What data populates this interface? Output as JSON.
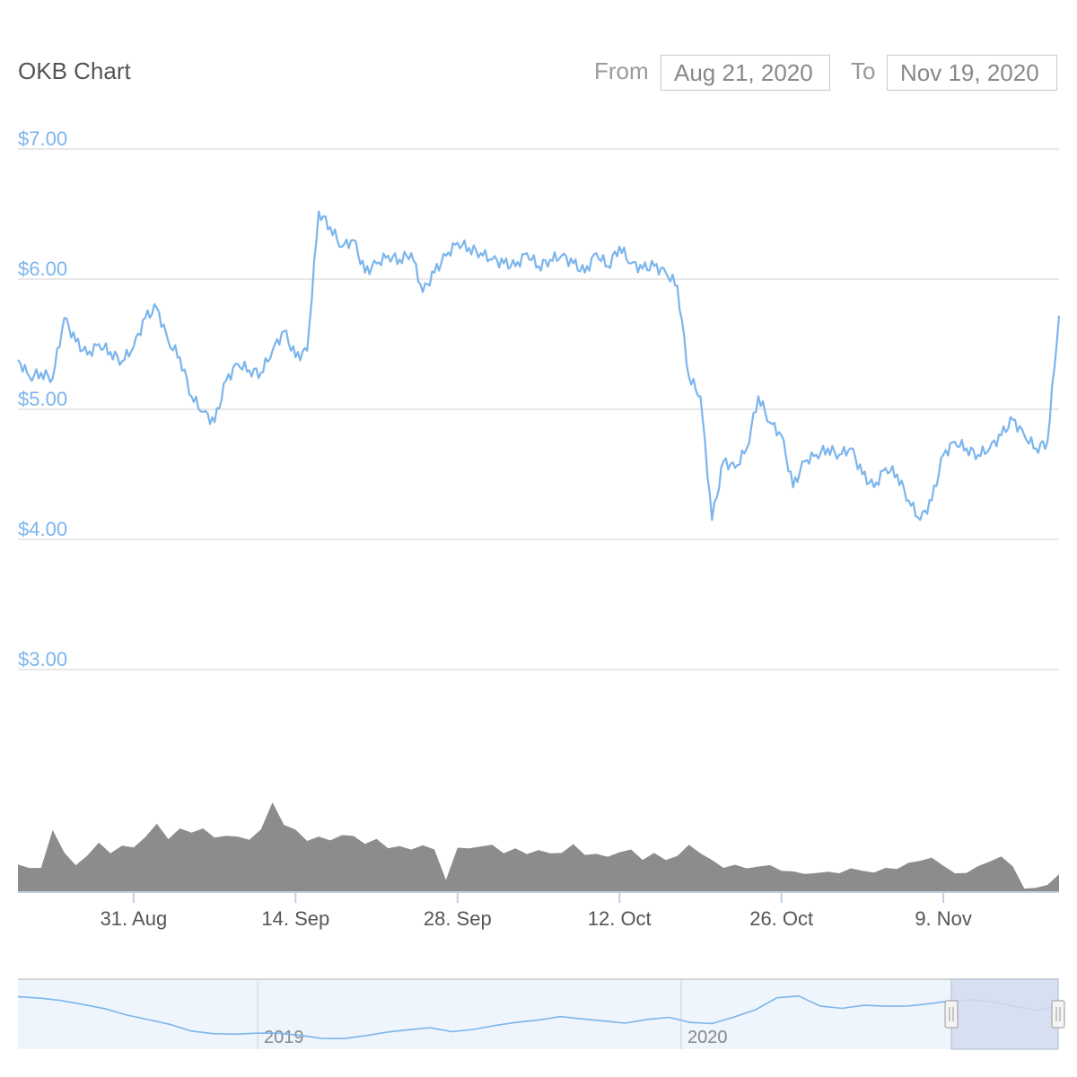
{
  "header": {
    "title": "OKB Chart",
    "from_label": "From",
    "from_value": "Aug 21, 2020",
    "to_label": "To",
    "to_value": "Nov 19, 2020"
  },
  "colors": {
    "price_line": "#7cb5ec",
    "volume_fill": "#8c8c8c",
    "grid": "#e0e0e0",
    "axis_text": "#555555",
    "ytick_text": "#7cb5ec",
    "navigator_fill": "#eef5fc",
    "navigator_mask": "#d2dcef"
  },
  "chart_data": {
    "type": "line",
    "title": "OKB Chart",
    "ylim": [
      3.0,
      7.0
    ],
    "y_ticks": [
      "$7.00",
      "$6.00",
      "$5.00",
      "$4.00",
      "$3.00"
    ],
    "y_tick_values": [
      7,
      6,
      5,
      4,
      3
    ],
    "x_range": [
      "2020-08-21",
      "2020-11-19"
    ],
    "x_ticks": [
      {
        "label": "31. Aug",
        "date": "2020-08-31"
      },
      {
        "label": "14. Sep",
        "date": "2020-09-14"
      },
      {
        "label": "28. Sep",
        "date": "2020-09-28"
      },
      {
        "label": "12. Oct",
        "date": "2020-10-12"
      },
      {
        "label": "26. Oct",
        "date": "2020-10-26"
      },
      {
        "label": "9. Nov",
        "date": "2020-11-09"
      }
    ],
    "grid": true,
    "series": [
      {
        "type": "line",
        "x": [
          "2020-08-21",
          "2020-08-22",
          "2020-08-23",
          "2020-08-24",
          "2020-08-25",
          "2020-08-26",
          "2020-08-27",
          "2020-08-28",
          "2020-08-29",
          "2020-08-30",
          "2020-08-31",
          "2020-09-01",
          "2020-09-02",
          "2020-09-03",
          "2020-09-04",
          "2020-09-05",
          "2020-09-06",
          "2020-09-07",
          "2020-09-08",
          "2020-09-09",
          "2020-09-10",
          "2020-09-11",
          "2020-09-12",
          "2020-09-13",
          "2020-09-14",
          "2020-09-15",
          "2020-09-16",
          "2020-09-17",
          "2020-09-18",
          "2020-09-19",
          "2020-09-20",
          "2020-09-21",
          "2020-09-22",
          "2020-09-23",
          "2020-09-24",
          "2020-09-25",
          "2020-09-26",
          "2020-09-27",
          "2020-09-28",
          "2020-09-29",
          "2020-09-30",
          "2020-10-01",
          "2020-10-02",
          "2020-10-03",
          "2020-10-04",
          "2020-10-05",
          "2020-10-06",
          "2020-10-07",
          "2020-10-08",
          "2020-10-09",
          "2020-10-10",
          "2020-10-11",
          "2020-10-12",
          "2020-10-13",
          "2020-10-14",
          "2020-10-15",
          "2020-10-16",
          "2020-10-17",
          "2020-10-18",
          "2020-10-19",
          "2020-10-20",
          "2020-10-21",
          "2020-10-22",
          "2020-10-23",
          "2020-10-24",
          "2020-10-25",
          "2020-10-26",
          "2020-10-27",
          "2020-10-28",
          "2020-10-29",
          "2020-10-30",
          "2020-10-31",
          "2020-11-01",
          "2020-11-02",
          "2020-11-03",
          "2020-11-04",
          "2020-11-05",
          "2020-11-06",
          "2020-11-07",
          "2020-11-08",
          "2020-11-09",
          "2020-11-10",
          "2020-11-11",
          "2020-11-12",
          "2020-11-13",
          "2020-11-14",
          "2020-11-15",
          "2020-11-16",
          "2020-11-17",
          "2020-11-18",
          "2020-11-19"
        ],
        "values": [
          5.38,
          5.25,
          5.28,
          5.24,
          5.7,
          5.52,
          5.42,
          5.5,
          5.44,
          5.37,
          5.48,
          5.7,
          5.78,
          5.52,
          5.4,
          5.1,
          4.98,
          4.9,
          5.22,
          5.35,
          5.3,
          5.28,
          5.45,
          5.6,
          5.4,
          5.45,
          6.52,
          6.4,
          6.25,
          6.3,
          6.05,
          6.12,
          6.18,
          6.15,
          6.2,
          5.9,
          6.05,
          6.18,
          6.28,
          6.24,
          6.2,
          6.15,
          6.12,
          6.1,
          6.2,
          6.1,
          6.15,
          6.18,
          6.12,
          6.05,
          6.2,
          6.1,
          6.25,
          6.12,
          6.08,
          6.1,
          6.05,
          5.95,
          5.25,
          5.1,
          4.15,
          4.6,
          4.55,
          4.7,
          5.1,
          4.9,
          4.8,
          4.4,
          4.6,
          4.65,
          4.7,
          4.65,
          4.7,
          4.5,
          4.4,
          4.55,
          4.5,
          4.3,
          4.15,
          4.3,
          4.65,
          4.75,
          4.7,
          4.65,
          4.7,
          4.8,
          4.92,
          4.8,
          4.7,
          4.75,
          5.72
        ]
      },
      {
        "type": "area",
        "values": [
          0.22,
          0.2,
          0.18,
          0.55,
          0.3,
          0.22,
          0.3,
          0.38,
          0.34,
          0.35,
          0.38,
          0.44,
          0.54,
          0.46,
          0.48,
          0.52,
          0.5,
          0.44,
          0.48,
          0.42,
          0.46,
          0.48,
          0.75,
          0.56,
          0.48,
          0.45,
          0.42,
          0.44,
          0.46,
          0.44,
          0.42,
          0.4,
          0.38,
          0.36,
          0.34,
          0.4,
          0.32,
          0.1,
          0.34,
          0.36,
          0.38,
          0.36,
          0.34,
          0.33,
          0.32,
          0.34,
          0.3,
          0.34,
          0.36,
          0.32,
          0.3,
          0.28,
          0.34,
          0.32,
          0.28,
          0.3,
          0.26,
          0.3,
          0.36,
          0.34,
          0.24,
          0.2,
          0.22,
          0.18,
          0.22,
          0.2,
          0.18,
          0.16,
          0.14,
          0.16,
          0.15,
          0.16,
          0.18,
          0.17,
          0.16,
          0.18,
          0.2,
          0.22,
          0.26,
          0.28,
          0.2,
          0.16,
          0.14,
          0.22,
          0.24,
          0.28,
          0.22,
          0.02,
          0.03,
          0.05,
          0.14
        ]
      }
    ],
    "navigator": {
      "labels": [
        "2019",
        "2020"
      ],
      "values": [
        0.9,
        0.84,
        0.8,
        0.76,
        0.7,
        0.55,
        0.42,
        0.32,
        0.22,
        0.2,
        0.18,
        0.16,
        0.14,
        0.12,
        0.1,
        0.1,
        0.12,
        0.16,
        0.22,
        0.3,
        0.24,
        0.26,
        0.3,
        0.36,
        0.44,
        0.54,
        0.48,
        0.4,
        0.34,
        0.44,
        0.52,
        0.42,
        0.36,
        0.46,
        0.62,
        0.9,
        0.95,
        0.72,
        0.64,
        0.7,
        0.72,
        0.75,
        0.78,
        0.8,
        0.8,
        0.79,
        0.74,
        0.66,
        0.7
      ]
    }
  }
}
